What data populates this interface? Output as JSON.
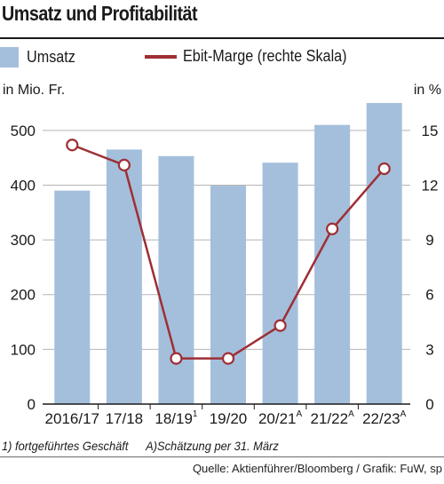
{
  "title": "Umsatz und Profitabilität",
  "legend": {
    "bar_label": "Umsatz",
    "line_label": "Ebit-Marge (rechte Skala)"
  },
  "left_unit": "in Mio. Fr.",
  "right_unit": "in %",
  "footnote1": "1) fortgeführtes Geschäft",
  "footnote2": "A)Schätzung per 31. März",
  "source": "Quelle: Aktienführer/Bloomberg / Grafik: FuW, sp",
  "colors": {
    "bar": "#a4bfdc",
    "line": "#9e2f35",
    "marker_fill": "#ffffff",
    "grid": "#b5b5b5"
  },
  "chart_data": {
    "type": "bar",
    "categories": [
      "2016/17",
      "17/18",
      "18/19",
      "19/20",
      "20/21",
      "21/22",
      "22/23"
    ],
    "category_superscripts": [
      "",
      "",
      "1",
      "",
      "A",
      "A",
      "A"
    ],
    "series": [
      {
        "name": "Umsatz",
        "axis": "left",
        "type": "bar",
        "values": [
          390,
          465,
          453,
          399,
          441,
          510,
          550
        ]
      },
      {
        "name": "Ebit-Marge (rechte Skala)",
        "axis": "right",
        "type": "line",
        "values": [
          14.2,
          13.1,
          2.5,
          2.5,
          4.3,
          9.6,
          12.9
        ]
      }
    ],
    "ylim": [
      0,
      550
    ],
    "yticks": [
      0,
      100,
      200,
      300,
      400,
      500
    ],
    "y2lim": [
      0,
      16.5
    ],
    "y2ticks": [
      0,
      3,
      6,
      9,
      12,
      15
    ],
    "xlabel": "",
    "ylabel": "in Mio. Fr.",
    "y2label": "in %",
    "grid": true,
    "legend_position": "top"
  }
}
